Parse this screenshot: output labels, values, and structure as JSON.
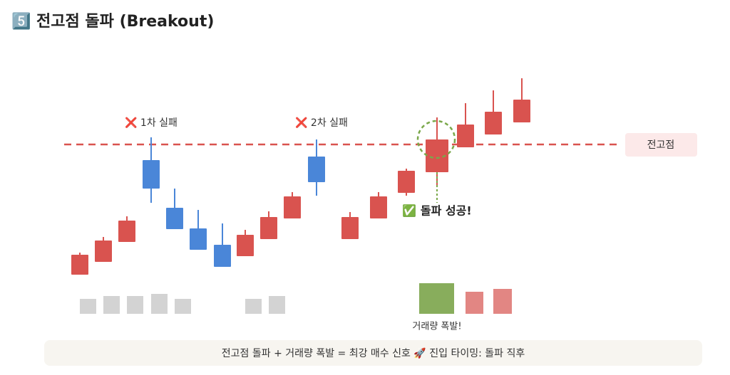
{
  "header": {
    "title": "5️⃣ 전고점 돌파 (Breakout)"
  },
  "diagram": {
    "annotations": {
      "fail_1": "❌ 1차 실패",
      "fail_2": "❌ 2차 실패",
      "success": "✅ 돌파 성공!",
      "volume": "거래량 폭발!"
    },
    "resistance_label": "전고점"
  },
  "footer": {
    "text": "전고점 돌파 + 거래량 폭발 = 최강 매수 신호 🚀 진입 타이밍: 돌파 직후"
  }
}
